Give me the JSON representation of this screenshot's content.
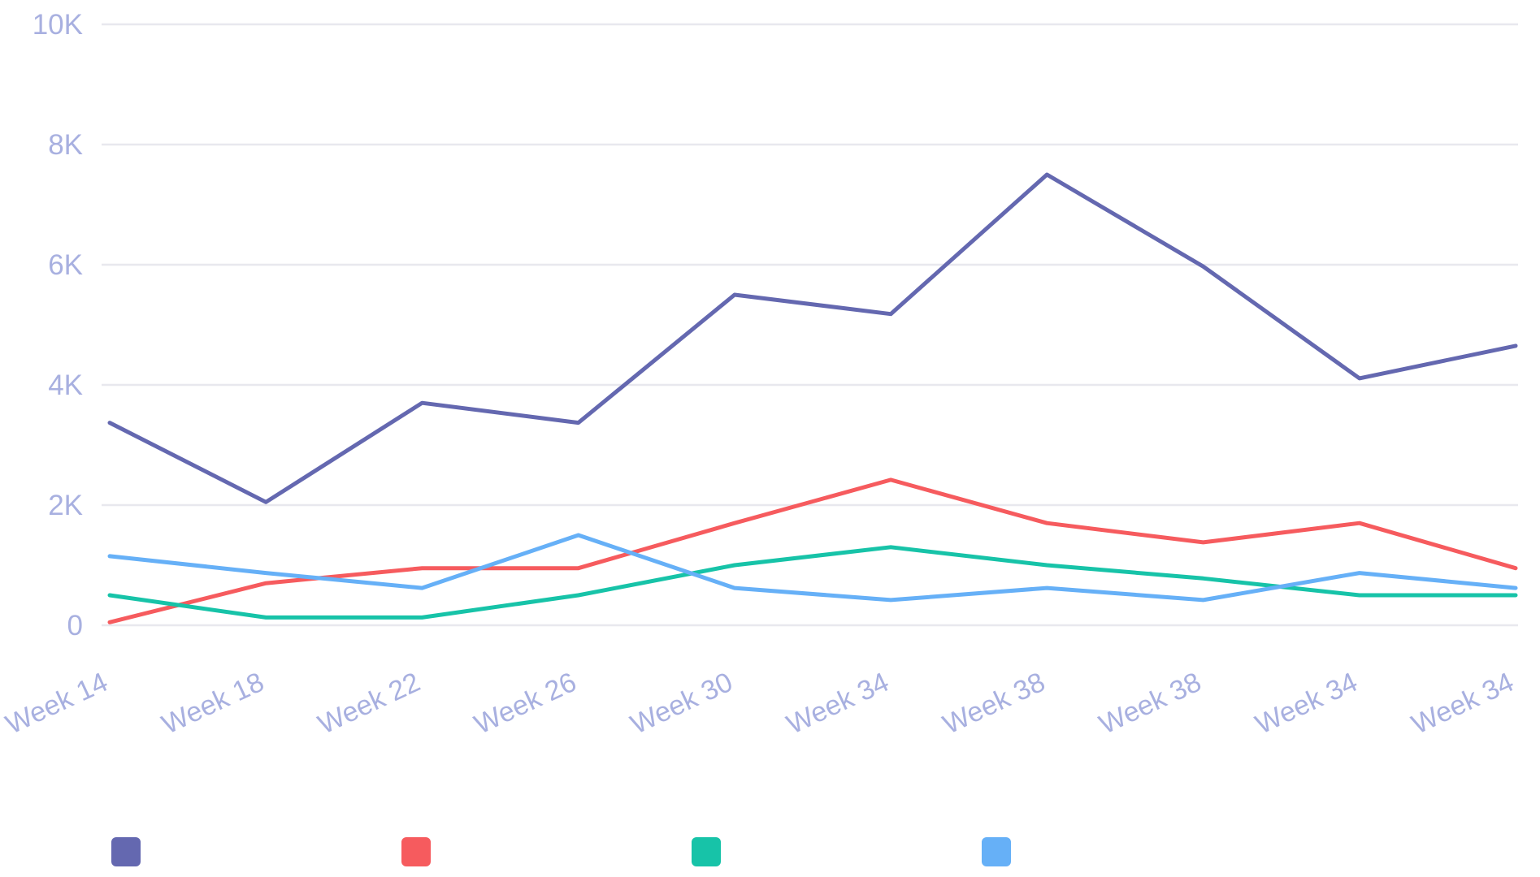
{
  "chart_data": {
    "type": "line",
    "categories": [
      "Week 14",
      "Week 18",
      "Week 22",
      "Week 26",
      "Week 30",
      "Week 34",
      "Week 38",
      "Week 38",
      "Week 34",
      "Week 34"
    ],
    "y_tick_labels": [
      "0",
      "2K",
      "4K",
      "6K",
      "8K",
      "10K"
    ],
    "y_tick_values": [
      0,
      2000,
      4000,
      6000,
      8000,
      10000
    ],
    "ylim": [
      0,
      10000
    ],
    "grid": true,
    "legend_position": "bottom-left",
    "series": [
      {
        "color": "#6468b0",
        "values": [
          3370,
          2050,
          3700,
          3370,
          5500,
          5180,
          7500,
          5970,
          4110,
          4650
        ]
      },
      {
        "color": "#f65b5e",
        "values": [
          50,
          700,
          950,
          950,
          1700,
          2420,
          1700,
          1380,
          1700,
          950
        ]
      },
      {
        "color": "#17c3a8",
        "values": [
          500,
          130,
          130,
          500,
          1000,
          1300,
          1000,
          780,
          500,
          500
        ]
      },
      {
        "color": "#66b0f7",
        "values": [
          1150,
          870,
          620,
          1500,
          620,
          420,
          620,
          420,
          870,
          620
        ]
      }
    ]
  }
}
